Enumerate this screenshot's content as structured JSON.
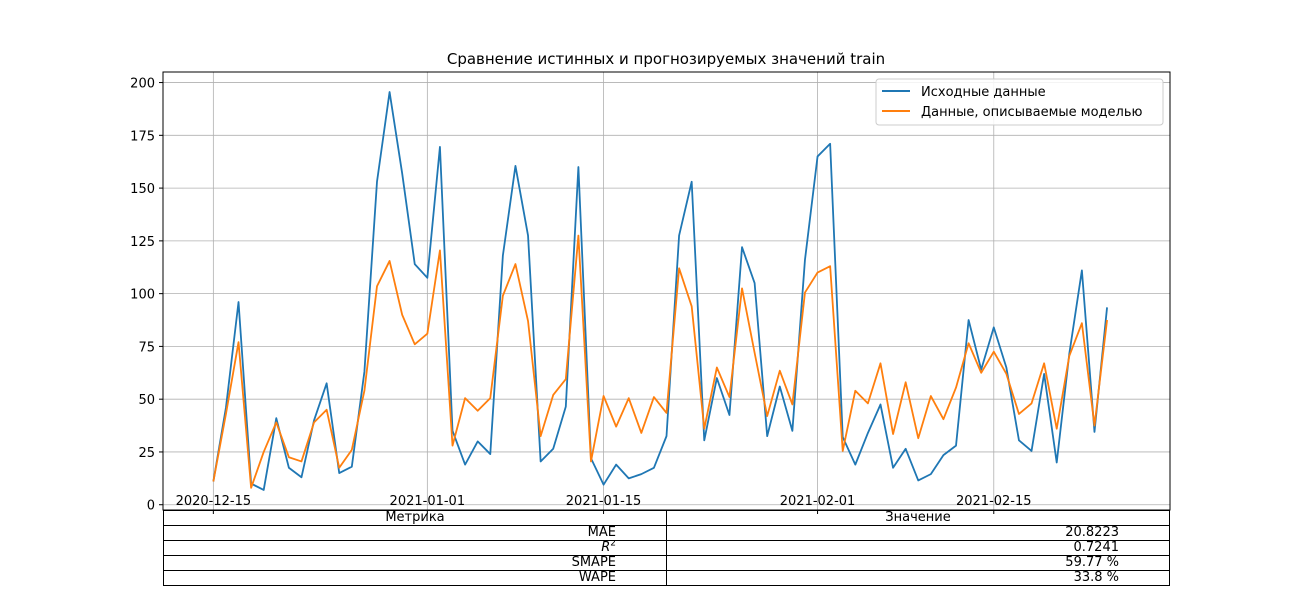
{
  "chart_data": {
    "type": "line",
    "title": "Сравнение истинных и прогнозируемых значений train",
    "xlabel": "",
    "ylabel": "",
    "start_date": "2020-12-15",
    "x_ticks": [
      "2020-12-15",
      "2021-01-01",
      "2021-01-15",
      "2021-02-01",
      "2021-02-15"
    ],
    "y_ticks": [
      0,
      25,
      50,
      75,
      100,
      125,
      150,
      175,
      200
    ],
    "ylim": [
      -2.5,
      205
    ],
    "xlim": [
      "2020-12-11",
      "2021-03-01"
    ],
    "grid": true,
    "legend_position": "top-right",
    "series": [
      {
        "name": "Исходные данные",
        "color": "#1f77b4",
        "values": [
          11,
          46,
          96,
          10,
          7,
          41,
          17.5,
          13,
          40,
          57.5,
          15,
          18,
          63,
          153,
          195.5,
          157,
          114,
          107.5,
          169.5,
          35,
          19,
          30,
          24,
          118,
          160.5,
          127.5,
          20.5,
          26.5,
          46.5,
          160,
          22,
          9.5,
          19,
          12.5,
          14.5,
          17.5,
          32.5,
          127.5,
          153,
          30.5,
          60,
          42.5,
          122,
          105,
          32.5,
          56,
          35,
          116,
          165,
          171,
          32,
          19,
          34,
          47.5,
          17.5,
          26.5,
          11.5,
          14.5,
          23.5,
          28,
          87.5,
          64,
          84,
          65,
          30.5,
          25.5,
          62,
          20,
          71.5,
          111,
          34.5,
          93.5
        ]
      },
      {
        "name": "Данные, описываемые моделью",
        "color": "#ff7f0e",
        "values": [
          11,
          43,
          77,
          8,
          25,
          39,
          22.5,
          20.5,
          39,
          45,
          17.5,
          26,
          54,
          103.5,
          115.5,
          90,
          76,
          81,
          120.5,
          28,
          50.5,
          44.5,
          50.5,
          99,
          114,
          87,
          32.5,
          52,
          59.5,
          127.5,
          20.5,
          51.5,
          37,
          50.5,
          34,
          51,
          43.5,
          112,
          94,
          36,
          65,
          51,
          102.5,
          72,
          42,
          63.5,
          47.5,
          100.5,
          110,
          113,
          25.5,
          54,
          48,
          67,
          33.5,
          58,
          31.5,
          51.5,
          40.5,
          55.5,
          76.5,
          62.5,
          72.5,
          62,
          43,
          48,
          67,
          36,
          70.5,
          86,
          37.5,
          87.5
        ]
      }
    ]
  },
  "metrics_table": {
    "header_metric": "Метрика",
    "header_value": "Значение",
    "rows": [
      {
        "metric": "MAE",
        "value": "20.8223"
      },
      {
        "metric": "R",
        "metric_sup": "2",
        "value": "0.7241"
      },
      {
        "metric": "SMAPE",
        "value": "59.77 %"
      },
      {
        "metric": "WAPE",
        "value": "33.8 %"
      }
    ]
  }
}
